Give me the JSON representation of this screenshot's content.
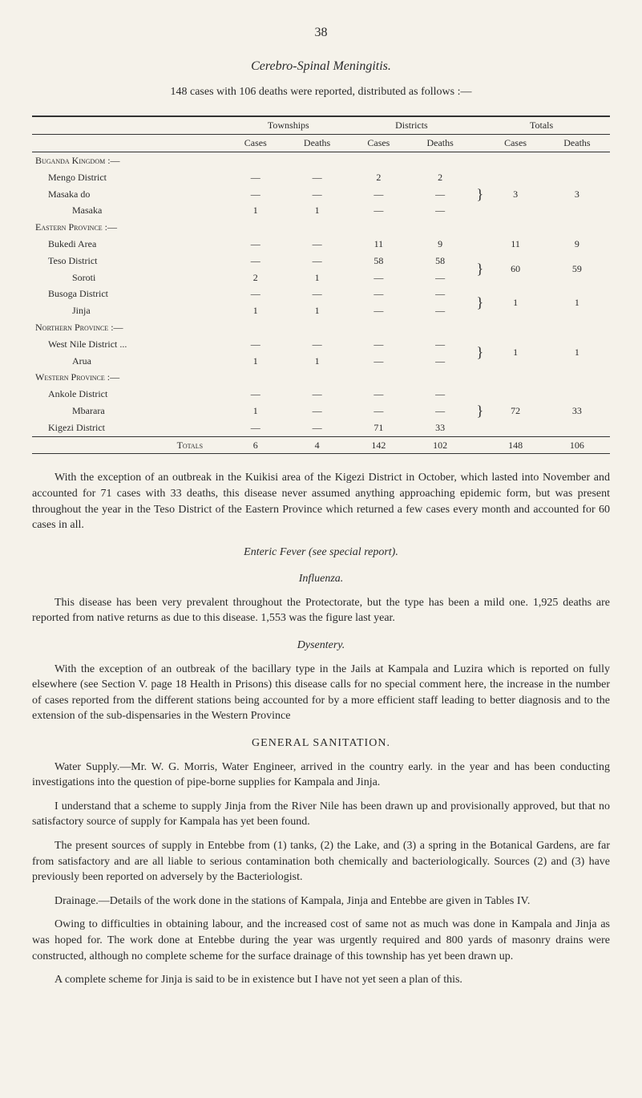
{
  "pageNumber": "38",
  "titleItalic": "Cerebro-Spinal Meningitis.",
  "introLine": "148 cases with 106 deaths were reported, distributed as follows :—",
  "tableHeaders": {
    "townships": "Townships",
    "districts": "Districts",
    "totals": "Totals",
    "cases": "Cases",
    "deaths": "Deaths"
  },
  "regions": {
    "buganda": "Buganda Kingdom :—",
    "eastern": "Eastern Province :—",
    "northern": "Northern Province :—",
    "western": "Western Province :—"
  },
  "rows": {
    "mengo": {
      "label": "Mengo District",
      "tc": "—",
      "td": "—",
      "dc": "2",
      "dd": "2"
    },
    "masakaDo": {
      "label": "Masaka  do",
      "tc": "—",
      "td": "—",
      "dc": "—",
      "dd": "—"
    },
    "masaka": {
      "label": "Masaka",
      "tc": "1",
      "td": "1",
      "dc": "—",
      "dd": "—"
    },
    "bukedi": {
      "label": "Bukedi Area",
      "tc": "—",
      "td": "—",
      "dc": "11",
      "dd": "9",
      "totC": "11",
      "totD": "9"
    },
    "teso": {
      "label": "Teso District",
      "tc": "—",
      "td": "—",
      "dc": "58",
      "dd": "58"
    },
    "soroti": {
      "label": "Soroti",
      "tc": "2",
      "td": "1",
      "dc": "—",
      "dd": "—"
    },
    "busoga": {
      "label": "Busoga District",
      "tc": "—",
      "td": "—",
      "dc": "—",
      "dd": "—"
    },
    "jinja": {
      "label": "Jinja",
      "tc": "1",
      "td": "1",
      "dc": "—",
      "dd": "—"
    },
    "westNile": {
      "label": "West Nile District ...",
      "tc": "—",
      "td": "—",
      "dc": "—",
      "dd": "—"
    },
    "arua": {
      "label": "Arua",
      "tc": "1",
      "td": "1",
      "dc": "—",
      "dd": "—"
    },
    "ankole": {
      "label": "Ankole District",
      "tc": "—",
      "td": "—",
      "dc": "—",
      "dd": "—"
    },
    "mbarara": {
      "label": "Mbarara",
      "tc": "1",
      "td": "—",
      "dc": "—",
      "dd": "—"
    },
    "kigezi": {
      "label": "Kigezi District",
      "tc": "—",
      "td": "—",
      "dc": "71",
      "dd": "33"
    }
  },
  "subtotals": {
    "buganda": {
      "c": "3",
      "d": "3"
    },
    "teso": {
      "c": "60",
      "d": "59"
    },
    "busoga": {
      "c": "1",
      "d": "1"
    },
    "northern": {
      "c": "1",
      "d": "1"
    },
    "western": {
      "c": "72",
      "d": "33"
    }
  },
  "totalsRow": {
    "label": "Totals",
    "tc": "6",
    "td": "4",
    "dc": "142",
    "dd": "102",
    "totC": "148",
    "totD": "106"
  },
  "paragraphs": {
    "p1": "With the exception of an outbreak in the Kuikisi area of the Kigezi District in October, which lasted into November and accounted for 71 cases with 33 deaths, this disease never assumed anything approaching epidemic form, but was present throughout the year in the Teso District of the Eastern Province which returned a few cases every month and accounted for 60 cases in all.",
    "entericHeader": "Enteric Fever (see special report).",
    "influenzaHeader": "Influenza.",
    "p2": "This disease has been very prevalent throughout the Protectorate, but the type has been a mild one. 1,925 deaths are reported from native returns as due to this disease. 1,553 was the figure last year.",
    "dysenteryHeader": "Dysentery.",
    "p3": "With the exception of an outbreak of the bacillary type in the Jails at Kampala and Luzira which is reported on fully elsewhere (see Section V. page 18 Health in Prisons) this disease calls for no special comment here, the increase in the number of cases reported from the different stations being accounted for by a more efficient staff leading to better diagnosis and to the extension of the sub-dispensaries in the Western Province",
    "sanitationHeader": "GENERAL SANITATION.",
    "p4": "Water Supply.—Mr. W. G. Morris, Water Engineer, arrived in the country early. in the year and has been conducting investigations into the question of pipe-borne supplies for Kampala and Jinja.",
    "p5": "I understand that a scheme to supply Jinja from the River Nile has been drawn up and provisionally approved, but that no satisfactory source of supply for Kampala has yet been found.",
    "p6": "The present sources of supply in Entebbe from (1) tanks, (2) the Lake, and (3) a spring in the Botanical Gardens, are far from satisfactory and are all liable to serious contamination both chemically and bacteriologically. Sources (2) and (3) have previously been reported on adversely by the Bacteriologist.",
    "p7": "Drainage.—Details of the work done in the stations of Kampala, Jinja and Entebbe are given in Tables IV.",
    "p8": "Owing to difficulties in obtaining labour, and the increased cost of same not as much was done in Kampala and Jinja as was hoped for. The work done at Entebbe during the year was urgently required and 800 yards of masonry drains were constructed, although no complete scheme for the surface drainage of this township has yet been drawn up.",
    "p9": "A complete scheme for Jinja is said to be in existence but I have not yet seen a plan of this."
  }
}
